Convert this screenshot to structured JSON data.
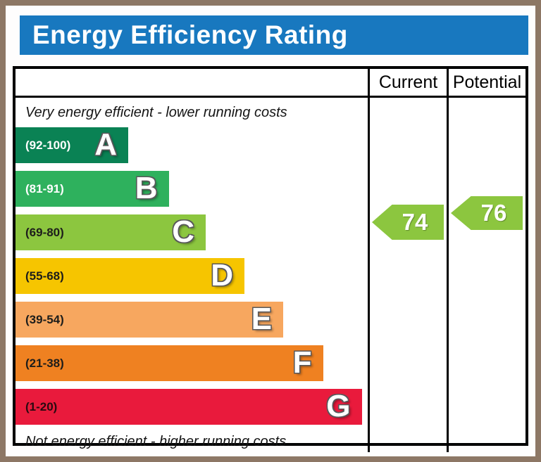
{
  "title": "Energy Efficiency Rating",
  "headers": {
    "current": "Current",
    "potential": "Potential"
  },
  "captions": {
    "top": "Very energy efficient - lower running costs",
    "bottom": "Not energy efficient - higher running costs"
  },
  "chart_data": {
    "type": "bar",
    "title": "Energy Efficiency Rating",
    "bands": [
      {
        "letter": "A",
        "range": "(92-100)",
        "min": 92,
        "max": 100,
        "color": "#0a8254",
        "range_text_color": "#ffffff",
        "width_pct": 32
      },
      {
        "letter": "B",
        "range": "(81-91)",
        "min": 81,
        "max": 91,
        "color": "#2eb15d",
        "range_text_color": "#ffffff",
        "width_pct": 43.5
      },
      {
        "letter": "C",
        "range": "(69-80)",
        "min": 69,
        "max": 80,
        "color": "#8cc63f",
        "range_text_color": "#1d1d1b",
        "width_pct": 54
      },
      {
        "letter": "D",
        "range": "(55-68)",
        "min": 55,
        "max": 68,
        "color": "#f6c500",
        "range_text_color": "#1d1d1b",
        "width_pct": 65
      },
      {
        "letter": "E",
        "range": "(39-54)",
        "min": 39,
        "max": 54,
        "color": "#f7a75f",
        "range_text_color": "#1d1d1b",
        "width_pct": 76
      },
      {
        "letter": "F",
        "range": "(21-38)",
        "min": 21,
        "max": 38,
        "color": "#ef8121",
        "range_text_color": "#1d1d1b",
        "width_pct": 87.3
      },
      {
        "letter": "G",
        "range": "(1-20)",
        "min": 1,
        "max": 20,
        "color": "#e91a3c",
        "range_text_color": "#2a0a10",
        "width_pct": 98.3
      }
    ],
    "current": {
      "value": 74,
      "band": "C",
      "color": "#8cc63f"
    },
    "potential": {
      "value": 76,
      "band": "C",
      "color": "#8cc63f"
    }
  },
  "colors": {
    "title_bar": "#1878bf",
    "frame_border": "#8d7765",
    "table_border": "#000000",
    "arrow_green": "#8cc63f"
  }
}
